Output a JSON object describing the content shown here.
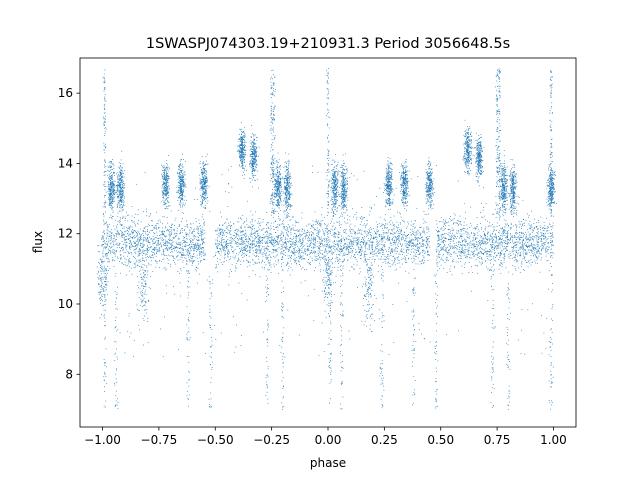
{
  "chart_data": {
    "type": "scatter",
    "title": "1SWASPJ074303.19+210931.3 Period 3056648.5s",
    "xlabel": "phase",
    "ylabel": "flux",
    "xlim": [
      -1.1,
      1.1
    ],
    "ylim": [
      6.5,
      17.0
    ],
    "xticks": [
      -1.0,
      -0.75,
      -0.5,
      -0.25,
      0.0,
      0.25,
      0.5,
      0.75,
      1.0
    ],
    "xtick_labels": [
      "−1.00",
      "−0.75",
      "−0.50",
      "−0.25",
      "0.00",
      "0.25",
      "0.50",
      "0.75",
      "1.00"
    ],
    "yticks": [
      8,
      10,
      12,
      14,
      16
    ],
    "ytick_labels": [
      "8",
      "10",
      "12",
      "14",
      "16"
    ],
    "grid": false,
    "marker_color": "#1f77b4",
    "series": [
      {
        "bands": [
          {
            "x": [
              -1.0,
              -0.545
            ],
            "y": 11.75,
            "spread": 0.35
          },
          {
            "x": [
              -0.5,
              0.45
            ],
            "y": 11.75,
            "spread": 0.35
          },
          {
            "x": [
              0.48,
              1.0
            ],
            "y": 11.75,
            "spread": 0.35
          }
        ],
        "clusters": [
          {
            "x": -0.96,
            "y": 13.3,
            "spread": 0.35
          },
          {
            "x": -0.92,
            "y": 13.3,
            "spread": 0.35
          },
          {
            "x": -0.72,
            "y": 13.4,
            "spread": 0.3
          },
          {
            "x": -0.65,
            "y": 13.4,
            "spread": 0.3
          },
          {
            "x": -0.55,
            "y": 13.4,
            "spread": 0.3
          },
          {
            "x": -0.38,
            "y": 14.4,
            "spread": 0.3
          },
          {
            "x": -0.33,
            "y": 14.2,
            "spread": 0.3
          },
          {
            "x": -0.22,
            "y": 13.3,
            "spread": 0.35
          },
          {
            "x": -0.18,
            "y": 13.3,
            "spread": 0.35
          },
          {
            "x": 0.03,
            "y": 13.3,
            "spread": 0.35
          },
          {
            "x": 0.07,
            "y": 13.3,
            "spread": 0.35
          },
          {
            "x": 0.27,
            "y": 13.4,
            "spread": 0.3
          },
          {
            "x": 0.34,
            "y": 13.4,
            "spread": 0.3
          },
          {
            "x": 0.45,
            "y": 13.4,
            "spread": 0.3
          },
          {
            "x": 0.62,
            "y": 14.4,
            "spread": 0.3
          },
          {
            "x": 0.67,
            "y": 14.2,
            "spread": 0.3
          },
          {
            "x": 0.78,
            "y": 13.3,
            "spread": 0.35
          },
          {
            "x": 0.82,
            "y": 13.3,
            "spread": 0.35
          },
          {
            "x": 0.99,
            "y": 13.3,
            "spread": 0.3
          }
        ],
        "dips": [
          {
            "x": -0.82,
            "y": 10.5,
            "spread": 0.6
          },
          {
            "x": 0.18,
            "y": 10.5,
            "spread": 0.6
          },
          {
            "x": 0.0,
            "y": 10.8,
            "spread": 0.5
          },
          {
            "x": -1.0,
            "y": 10.8,
            "spread": 0.5
          }
        ],
        "spikes_up": [
          -0.99,
          -0.25,
          -0.24,
          0.0,
          0.75,
          0.76,
          0.99
        ],
        "spikes_down": [
          -0.99,
          -0.94,
          -0.62,
          -0.52,
          -0.27,
          -0.2,
          0.01,
          0.06,
          0.24,
          0.38,
          0.48,
          0.73,
          0.8,
          0.99
        ]
      }
    ]
  }
}
